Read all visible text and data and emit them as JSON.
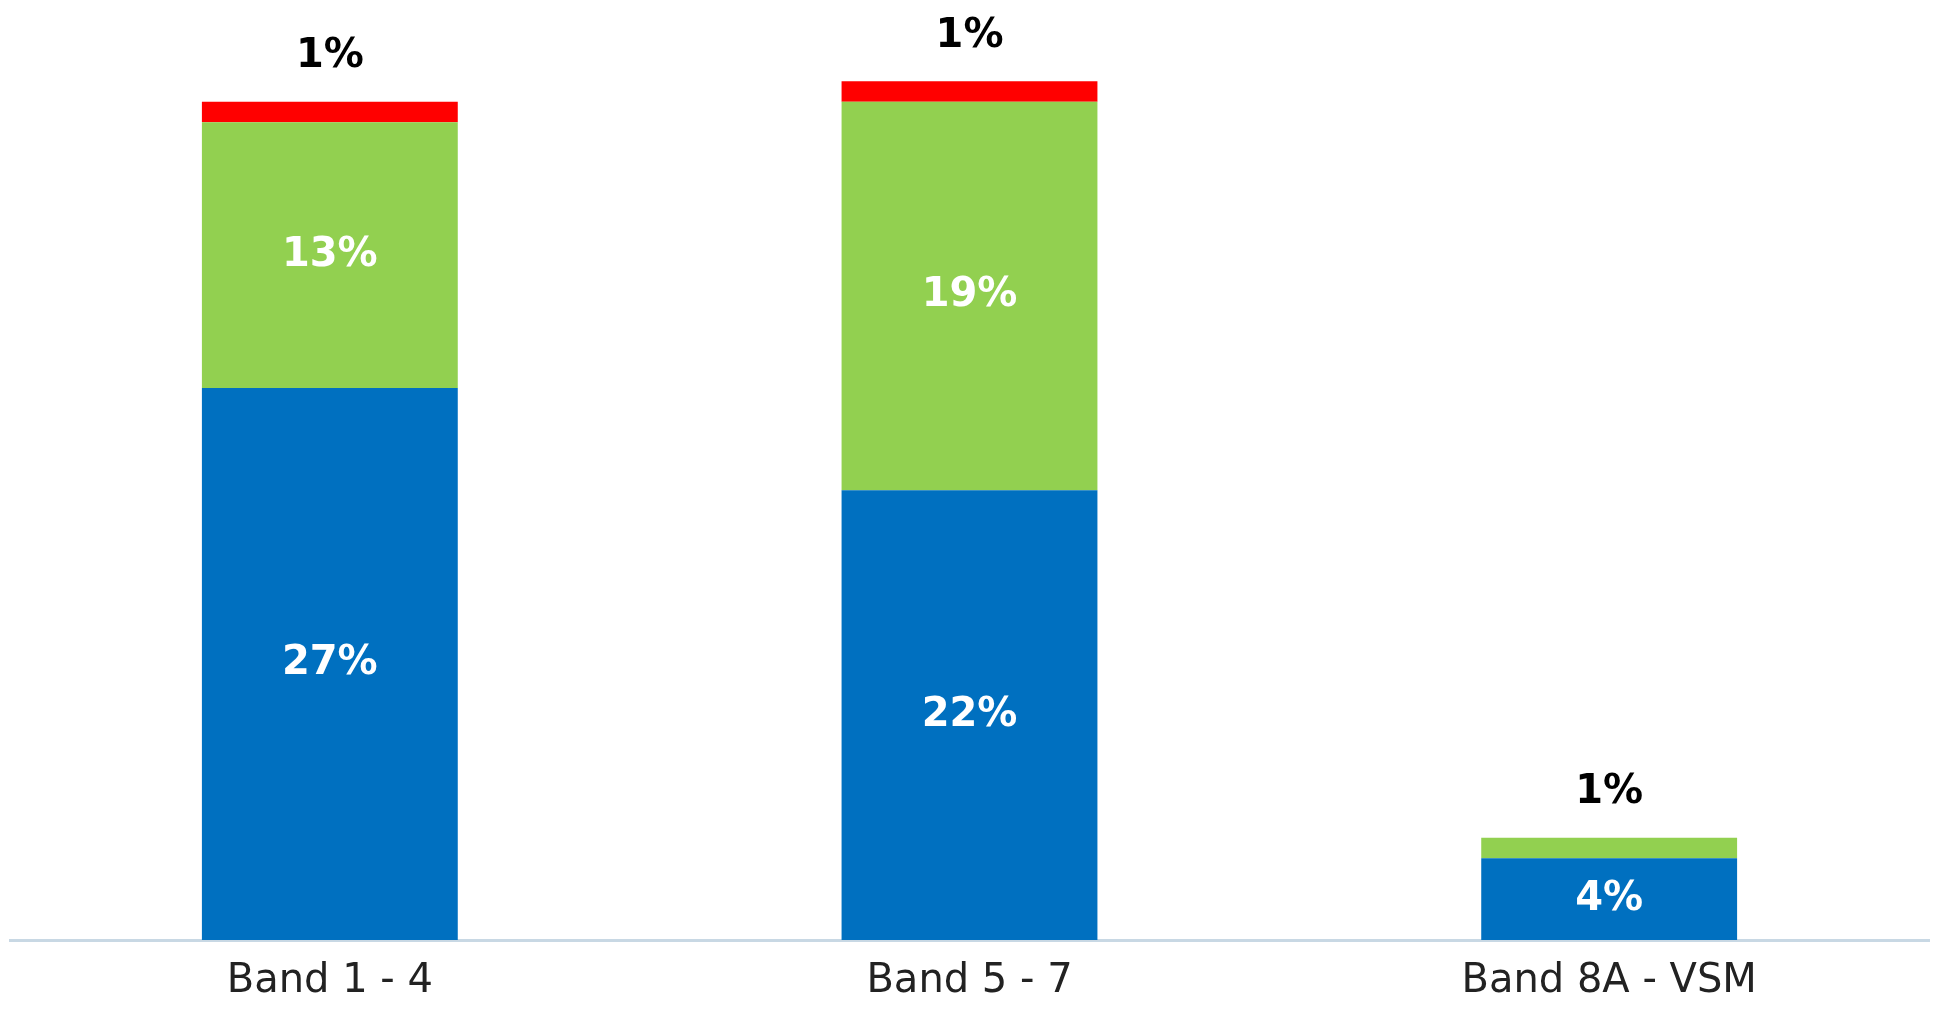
{
  "chart_data": {
    "type": "bar",
    "stacked": true,
    "categories": [
      "Band 1 - 4",
      "Band 5 - 7",
      "Band 8A - VSM"
    ],
    "series": [
      {
        "color": "#0070c0",
        "values": [
          27,
          22,
          4
        ],
        "value_labels": [
          "27%",
          "22%",
          "4%"
        ]
      },
      {
        "color": "#92d050",
        "values": [
          13,
          19,
          1
        ],
        "value_labels": [
          "13%",
          "19%",
          "1%"
        ]
      },
      {
        "color": "#ff0000",
        "values": [
          1,
          1,
          null
        ],
        "value_labels": [
          "1%",
          "1%",
          null
        ]
      }
    ],
    "grid": false,
    "legend": false
  }
}
